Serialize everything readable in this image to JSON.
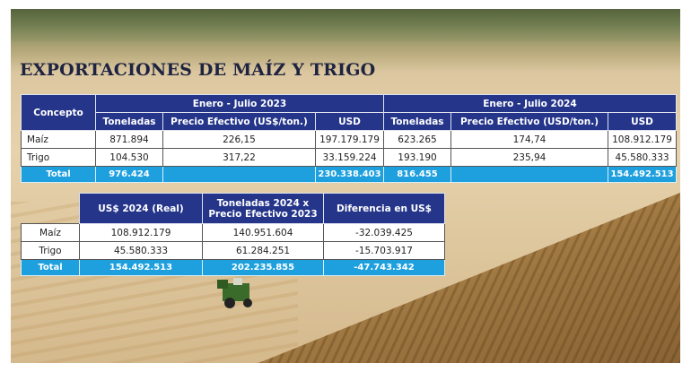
{
  "title": "EXPORTACIONES DE MAÍZ Y TRIGO",
  "table1": {
    "concept_header": "Concepto",
    "period_2023": "Enero - Julio 2023",
    "period_2024": "Enero - Julio 2024",
    "col_toneladas": "Toneladas",
    "col_precio_2023": "Precio Efectivo (US$/ton.)",
    "col_precio_2024": "Precio Efectivo (USD/ton.)",
    "col_usd": "USD",
    "rows": [
      {
        "label": "Maíz",
        "t23": "871.894",
        "p23": "226,15",
        "u23": "197.179.179",
        "t24": "623.265",
        "p24": "174,74",
        "u24": "108.912.179"
      },
      {
        "label": "Trigo",
        "t23": "104.530",
        "p23": "317,22",
        "u23": "33.159.224",
        "t24": "193.190",
        "p24": "235,94",
        "u24": "45.580.333"
      }
    ],
    "total": {
      "label": "Total",
      "t23": "976.424",
      "p23": "",
      "u23": "230.338.403",
      "t24": "816.455",
      "p24": "",
      "u24": "154.492.513"
    }
  },
  "table2": {
    "col_real": "US$ 2024 (Real)",
    "col_calc_line1": "Toneladas 2024 x",
    "col_calc_line2": "Precio Efectivo 2023",
    "col_diff": "Diferencia en US$",
    "rows": [
      {
        "label": "Maíz",
        "real": "108.912.179",
        "calc": "140.951.604",
        "diff": "-32.039.425"
      },
      {
        "label": "Trigo",
        "real": "45.580.333",
        "calc": "61.284.251",
        "diff": "-15.703.917"
      }
    ],
    "total": {
      "label": "Total",
      "real": "154.492.513",
      "calc": "202.235.855",
      "diff": "-47.743.342"
    }
  },
  "colors": {
    "header": "#24358a",
    "total": "#1fa0de",
    "title": "#1e2340"
  }
}
